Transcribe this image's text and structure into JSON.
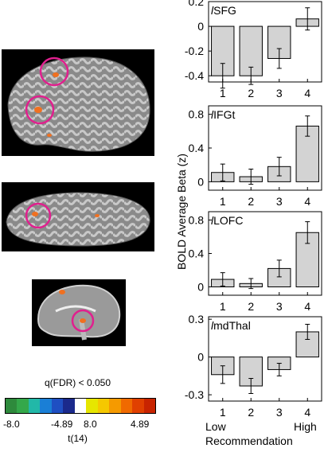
{
  "figure": {
    "ylabel": "BOLD Average Beta (z)",
    "xlabel": "Recommendation",
    "x_low_label": "Low",
    "x_high_label": "High"
  },
  "colorbar": {
    "title": "q(FDR) < 0.050",
    "tick_neg_min": "-8.0",
    "tick_neg_max": "-4.89",
    "tick_pos_min": "8.0",
    "tick_pos_max": "4.89",
    "unit": "t(14)",
    "colors": [
      "#2e8a3c",
      "#34a84a",
      "#22b8a8",
      "#1a7fd6",
      "#1f4fc2",
      "#1b2a8c",
      "#ffffff",
      "#e6e600",
      "#f5c800",
      "#f59a00",
      "#f06a00",
      "#e04000",
      "#c82400"
    ]
  },
  "brain_colors": {
    "circle": "#e0208e",
    "activation": "#f07020"
  },
  "chart_data": [
    {
      "type": "bar",
      "title_prefix": "l",
      "title_rest": "SFG",
      "categories": [
        "1",
        "2",
        "3",
        "4"
      ],
      "values": [
        -0.4,
        -0.4,
        -0.26,
        0.06
      ],
      "errors": [
        0.1,
        0.07,
        0.08,
        0.09
      ],
      "ylim": [
        -0.45,
        0.2
      ],
      "yticks": [
        0.2,
        0,
        -0.2,
        -0.4
      ],
      "ytick_labels": [
        "0.2",
        "0",
        "-0.2",
        "-0.4"
      ]
    },
    {
      "type": "bar",
      "title_prefix": "l",
      "title_rest": "IFGt",
      "categories": [
        "1",
        "2",
        "3",
        "4"
      ],
      "values": [
        0.11,
        0.06,
        0.18,
        0.66
      ],
      "errors": [
        0.1,
        0.09,
        0.11,
        0.12
      ],
      "ylim": [
        -0.1,
        0.9
      ],
      "yticks": [
        0,
        0.4,
        0.8
      ],
      "ytick_labels": [
        "0",
        "0.4",
        "0.8"
      ]
    },
    {
      "type": "bar",
      "title_prefix": "l",
      "title_rest": "LOFC",
      "categories": [
        "1",
        "2",
        "3",
        "4"
      ],
      "values": [
        0.09,
        0.04,
        0.22,
        0.65
      ],
      "errors": [
        0.08,
        0.06,
        0.1,
        0.13
      ],
      "ylim": [
        -0.1,
        0.9
      ],
      "yticks": [
        0,
        0.4,
        0.8
      ],
      "ytick_labels": [
        "0",
        "0.4",
        "0.8"
      ]
    },
    {
      "type": "bar",
      "title_prefix": "l",
      "title_rest": "mdThal",
      "categories": [
        "1",
        "2",
        "3",
        "4"
      ],
      "values": [
        -0.14,
        -0.23,
        -0.1,
        0.2
      ],
      "errors": [
        0.07,
        0.06,
        0.05,
        0.06
      ],
      "ylim": [
        -0.35,
        0.32
      ],
      "yticks": [
        0.3,
        0,
        -0.3
      ],
      "ytick_labels": [
        "0.3",
        "0",
        "-0.3"
      ]
    }
  ]
}
